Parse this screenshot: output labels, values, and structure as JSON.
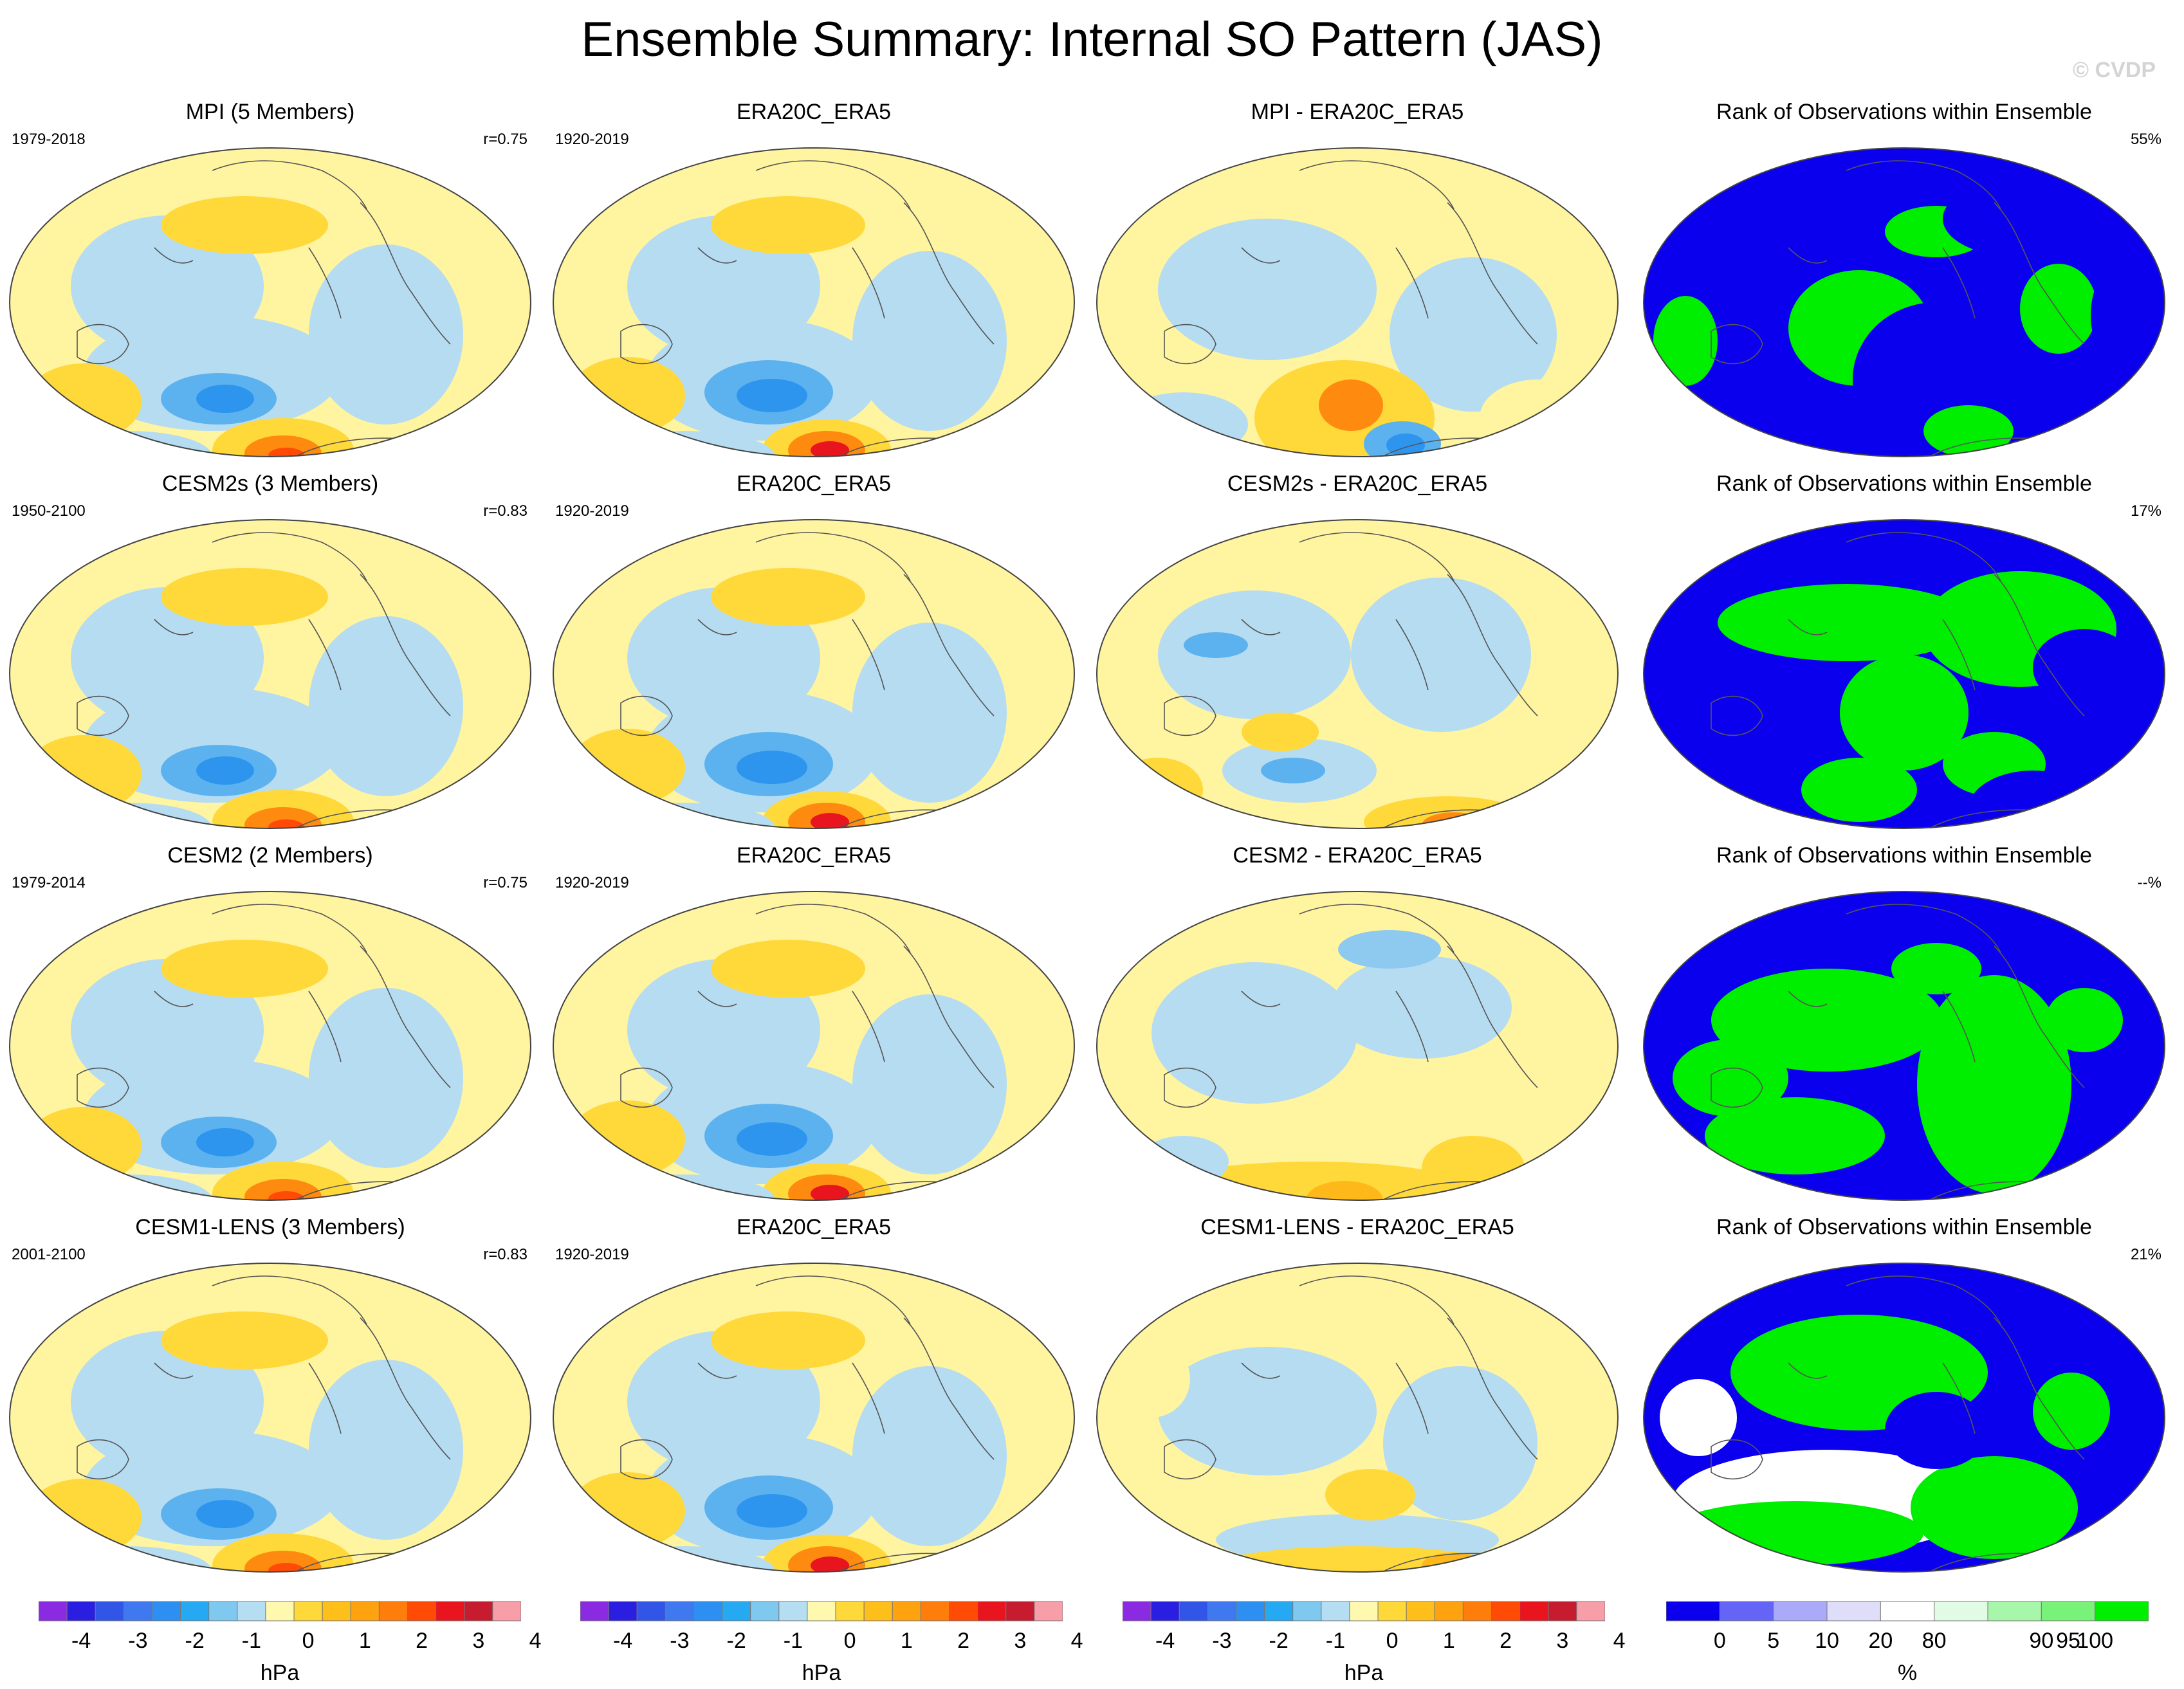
{
  "title": "Ensemble Summary: Internal SO Pattern (JAS)",
  "watermark": "© CVDP",
  "rows": [
    {
      "model": {
        "title": "MPI (5 Members)",
        "years": "1979-2018",
        "stat": "r=0.75",
        "pattern": "model"
      },
      "obs": {
        "title": "ERA20C_ERA5",
        "years": "1920-2019",
        "stat": "",
        "pattern": "obs"
      },
      "diff": {
        "title": "MPI - ERA20C_ERA5",
        "years": "",
        "stat": "",
        "pattern": "diff1"
      },
      "rank": {
        "title": "Rank of Observations within Ensemble",
        "years": "",
        "stat": "55%",
        "pattern": "rank1"
      }
    },
    {
      "model": {
        "title": "CESM2s (3 Members)",
        "years": "1950-2100",
        "stat": "r=0.83",
        "pattern": "model"
      },
      "obs": {
        "title": "ERA20C_ERA5",
        "years": "1920-2019",
        "stat": "",
        "pattern": "obs"
      },
      "diff": {
        "title": "CESM2s - ERA20C_ERA5",
        "years": "",
        "stat": "",
        "pattern": "diff2"
      },
      "rank": {
        "title": "Rank of Observations within Ensemble",
        "years": "",
        "stat": "17%",
        "pattern": "rank2"
      }
    },
    {
      "model": {
        "title": "CESM2 (2 Members)",
        "years": "1979-2014",
        "stat": "r=0.75",
        "pattern": "model"
      },
      "obs": {
        "title": "ERA20C_ERA5",
        "years": "1920-2019",
        "stat": "",
        "pattern": "obs"
      },
      "diff": {
        "title": "CESM2 - ERA20C_ERA5",
        "years": "",
        "stat": "",
        "pattern": "diff3"
      },
      "rank": {
        "title": "Rank of Observations within Ensemble",
        "years": "",
        "stat": "--%",
        "pattern": "rank3"
      }
    },
    {
      "model": {
        "title": "CESM1-LENS (3 Members)",
        "years": "2001-2100",
        "stat": "r=0.83",
        "pattern": "model"
      },
      "obs": {
        "title": "ERA20C_ERA5",
        "years": "1920-2019",
        "stat": "",
        "pattern": "obs"
      },
      "diff": {
        "title": "CESM1-LENS - ERA20C_ERA5",
        "years": "",
        "stat": "",
        "pattern": "diff4"
      },
      "rank": {
        "title": "Rank of Observations within Ensemble",
        "years": "",
        "stat": "21%",
        "pattern": "rank4"
      }
    }
  ],
  "colorbar_hpa": {
    "unit": "hPa",
    "ticks": [
      "-4",
      "-3",
      "-2",
      "-1",
      "0",
      "1",
      "2",
      "3",
      "4"
    ],
    "colors": [
      "#8a2be2",
      "#2a1fe0",
      "#3155e6",
      "#3f78ef",
      "#2e8ff2",
      "#24a9f2",
      "#7fc8f0",
      "#b5def2",
      "#fff9b0",
      "#ffd83a",
      "#ffbf1a",
      "#ffa20f",
      "#ff7d0a",
      "#ff4b05",
      "#e8141e",
      "#c71c2f",
      "#f79ea8"
    ]
  },
  "colorbar_pct": {
    "unit": "%",
    "ticks": [
      "0",
      "5",
      "10",
      "20",
      "80",
      "90",
      "95",
      "100"
    ],
    "colors": [
      "#0a00ee",
      "#6464f6",
      "#aaaaf8",
      "#dedef9",
      "#ffffff",
      "#e2fbe4",
      "#a8f6a9",
      "#78f278",
      "#00ee00"
    ]
  }
}
